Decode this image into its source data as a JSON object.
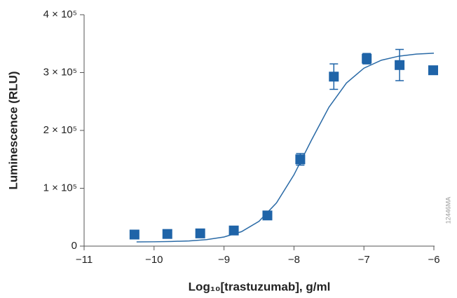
{
  "chart_data": {
    "type": "scatter",
    "y_label": "Luminescence (RLU)",
    "x_label": "Log₁₀[trastuzumab], g/ml",
    "annotation": "12446MA",
    "xlim": [
      -11,
      -6
    ],
    "xticks": [
      {
        "value": -11,
        "label": "−11"
      },
      {
        "value": -10,
        "label": "−10"
      },
      {
        "value": -9,
        "label": "−9"
      },
      {
        "value": -8,
        "label": "−8"
      },
      {
        "value": -7,
        "label": "−7"
      },
      {
        "value": -6,
        "label": "−6"
      }
    ],
    "ylim": [
      0,
      400000
    ],
    "yticks": [
      0,
      {
        "value": 100000,
        "label": "1 × 10⁵"
      },
      {
        "value": 200000,
        "label": "2 × 10⁵"
      },
      {
        "value": 300000,
        "label": "3 × 10⁵"
      },
      {
        "value": 400000,
        "label": "4 × 10⁵"
      }
    ],
    "grid": false,
    "points": {
      "color": "#1f64a8",
      "x": [
        -10.28,
        -9.81,
        -9.34,
        -8.86,
        -8.38,
        -7.91,
        -7.43,
        -6.96,
        -6.49,
        -6.01
      ],
      "values": [
        20000,
        21000,
        22000,
        27000,
        53000,
        150000,
        293000,
        324000,
        313000,
        304000
      ],
      "errors": [
        null,
        null,
        null,
        null,
        null,
        10000,
        22000,
        9000,
        27000,
        null
      ]
    },
    "fit": {
      "color": "#2a6aa6",
      "x": [
        -10.25,
        -10,
        -9.75,
        -9.5,
        -9.25,
        -9,
        -8.75,
        -8.5,
        -8.25,
        -8,
        -7.75,
        -7.5,
        -7.25,
        -7,
        -6.75,
        -6.5,
        -6.25,
        -6
      ],
      "values": [
        7200,
        7500,
        8000,
        9000,
        11200,
        15800,
        25000,
        42900,
        74700,
        123300,
        183200,
        240100,
        281900,
        307600,
        321400,
        328400,
        331900,
        333500
      ]
    }
  }
}
